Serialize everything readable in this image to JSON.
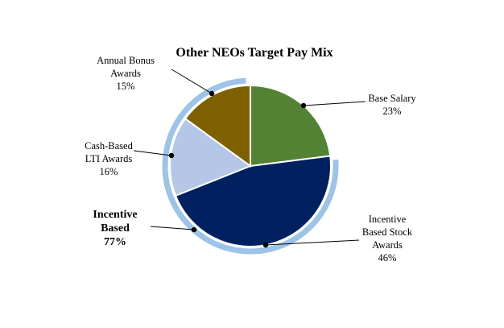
{
  "chart_data": {
    "type": "pie",
    "title": "Other NEOs Target Pay Mix",
    "slices": [
      {
        "label_lines": [
          "Base Salary",
          "23%"
        ],
        "value": 23,
        "color": "#548235"
      },
      {
        "label_lines": [
          "Incentive",
          "Based Stock",
          "Awards",
          "46%"
        ],
        "value": 46,
        "color": "#002060"
      },
      {
        "label_lines": [
          "Cash-Based",
          "LTI Awards",
          "16%"
        ],
        "value": 16,
        "color": "#b4c7e7"
      },
      {
        "label_lines": [
          "Annual Bonus",
          "Awards",
          "15%"
        ],
        "value": 15,
        "color": "#7f6000"
      }
    ],
    "group": {
      "label_lines": [
        "Incentive",
        "Based",
        "77%"
      ],
      "value": 77,
      "color": "#9dc3e6"
    },
    "start_angle_deg": 0,
    "direction": "clockwise",
    "legend": "none"
  }
}
